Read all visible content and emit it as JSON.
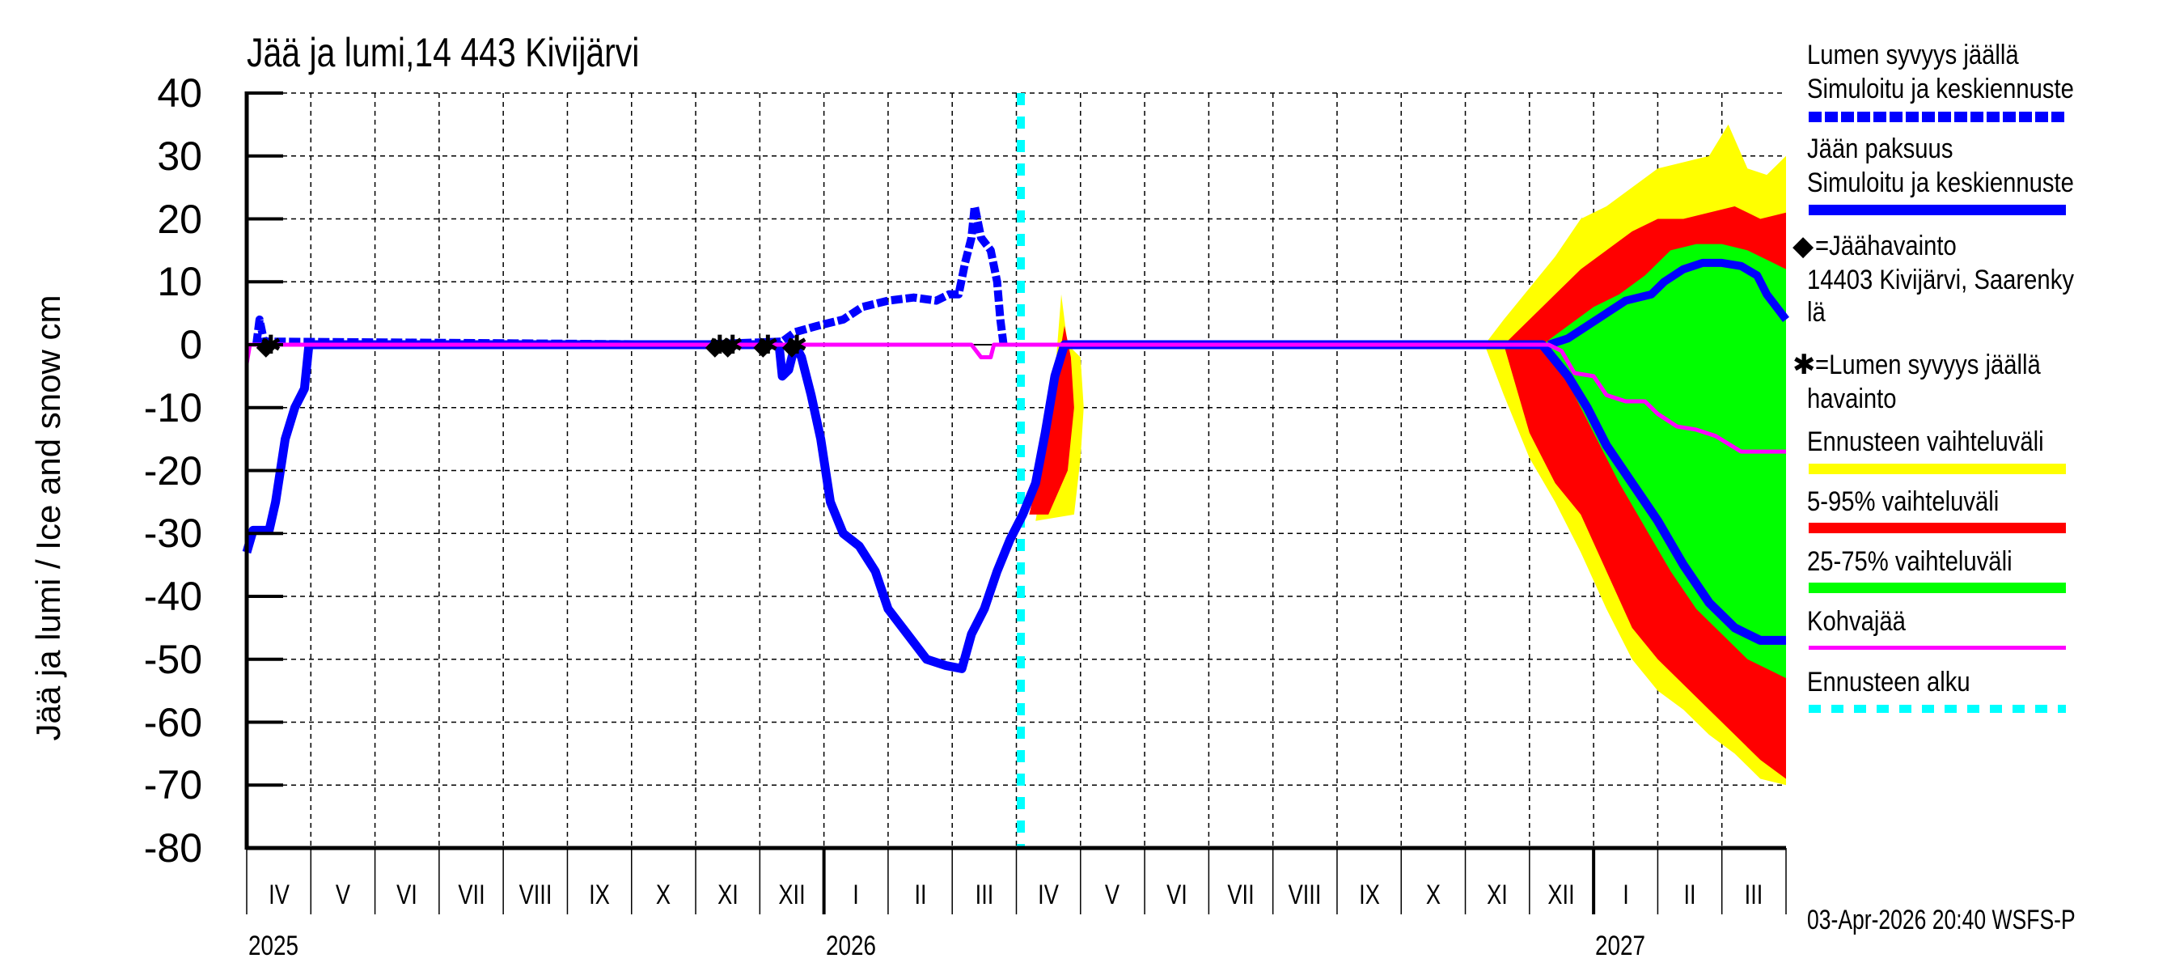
{
  "title": "Jää ja lumi,14 443 Kivijärvi",
  "ylabel": "Jää ja lumi / Ice and snow    cm",
  "timestamp": "03-Apr-2026 20:40 WSFS-P",
  "colors": {
    "snow_line": "#0000ff",
    "ice_line": "#0000ff",
    "forecast_range": "#ffff00",
    "range_5_95": "#ff0000",
    "range_25_75": "#00ff00",
    "slush_ice": "#ff00ff",
    "forecast_start": "#00ffff",
    "observation_marker": "#000000"
  },
  "legend": {
    "snow_title": "Lumen syvyys jäällä",
    "snow_sub": "Simuloitu ja keskiennuste",
    "ice_title": "Jään paksuus",
    "ice_sub": "Simuloitu ja keskiennuste",
    "ice_obs": "=Jäähavainto",
    "ice_obs_station_1": "14403 Kivijärvi, Saarenky",
    "ice_obs_station_2": "lä",
    "snow_obs_1": "=Lumen syvyys jäällä",
    "snow_obs_2": "havainto",
    "forecast_range": "Ennusteen vaihteluväli",
    "range_5_95": "5-95% vaihteluväli",
    "range_25_75": "25-75% vaihteluväli",
    "slush": "Kohvajää",
    "forecast_start": "Ennusteen alku"
  },
  "chart_data": {
    "type": "line",
    "title": "Jää ja lumi,14 443 Kivijärvi",
    "xlabel": "",
    "ylabel": "Jää ja lumi / Ice and snow cm",
    "ylim": [
      -80,
      40
    ],
    "yticks": [
      40,
      30,
      20,
      10,
      0,
      -10,
      -20,
      -30,
      -40,
      -50,
      -60,
      -70,
      -80
    ],
    "x_unit": "months since 2025-04-01",
    "xlim": [
      0,
      24
    ],
    "month_labels": [
      "IV",
      "V",
      "VI",
      "VII",
      "VIII",
      "IX",
      "X",
      "XI",
      "XII",
      "I",
      "II",
      "III",
      "IV",
      "V",
      "VI",
      "VII",
      "VIII",
      "IX",
      "X",
      "XI",
      "XII",
      "I",
      "II",
      "III"
    ],
    "year_labels": [
      {
        "label": "2025",
        "at": 0
      },
      {
        "label": "2026",
        "at": 9
      },
      {
        "label": "2027",
        "at": 21
      }
    ],
    "grid": true,
    "forecast_start": 12.07,
    "series": [
      {
        "name": "Lumen syvyys jäällä (simuloitu)",
        "style": "dashed",
        "points": [
          [
            0.15,
            0
          ],
          [
            0.2,
            4
          ],
          [
            0.27,
            0.5
          ],
          [
            7.0,
            0
          ],
          [
            8.35,
            0.5
          ],
          [
            8.55,
            2
          ],
          [
            8.9,
            3
          ],
          [
            9.3,
            4
          ],
          [
            9.6,
            6
          ],
          [
            10.0,
            7
          ],
          [
            10.4,
            7.5
          ],
          [
            10.75,
            7
          ],
          [
            10.95,
            8
          ],
          [
            11.1,
            8
          ],
          [
            11.2,
            13
          ],
          [
            11.3,
            17
          ],
          [
            11.35,
            22
          ],
          [
            11.45,
            17
          ],
          [
            11.6,
            15
          ],
          [
            11.7,
            10
          ],
          [
            11.75,
            4
          ],
          [
            11.8,
            0
          ]
        ]
      },
      {
        "name": "Jään paksuus (simuloitu)",
        "style": "solid",
        "points": [
          [
            0,
            -33
          ],
          [
            0.1,
            -29.5
          ],
          [
            0.35,
            -29.5
          ],
          [
            0.45,
            -25
          ],
          [
            0.6,
            -15
          ],
          [
            0.75,
            -10
          ],
          [
            0.9,
            -7
          ],
          [
            0.97,
            0
          ],
          [
            8.3,
            0
          ],
          [
            8.35,
            -5
          ],
          [
            8.45,
            -4
          ],
          [
            8.55,
            0
          ],
          [
            8.65,
            -2
          ],
          [
            8.8,
            -8
          ],
          [
            8.95,
            -15
          ],
          [
            9.1,
            -25
          ],
          [
            9.3,
            -30
          ],
          [
            9.55,
            -32
          ],
          [
            9.8,
            -36
          ],
          [
            10.0,
            -42
          ],
          [
            10.3,
            -46
          ],
          [
            10.6,
            -50
          ],
          [
            10.9,
            -51
          ],
          [
            11.15,
            -51.5
          ],
          [
            11.3,
            -46
          ],
          [
            11.5,
            -42
          ],
          [
            11.7,
            -36
          ],
          [
            11.9,
            -31
          ],
          [
            12.1,
            -27
          ],
          [
            12.3,
            -22
          ],
          [
            12.45,
            -14
          ],
          [
            12.6,
            -5
          ],
          [
            12.75,
            0
          ],
          [
            20.2,
            0
          ],
          [
            20.6,
            -5
          ],
          [
            20.9,
            -10
          ],
          [
            21.2,
            -16
          ],
          [
            21.6,
            -22
          ],
          [
            22.0,
            -28
          ],
          [
            22.4,
            -35
          ],
          [
            22.8,
            -41
          ],
          [
            23.2,
            -45
          ],
          [
            23.6,
            -47
          ],
          [
            24.0,
            -47
          ]
        ]
      },
      {
        "name": "Lumen syvyys ennuste (keski)",
        "style": "solid",
        "points": [
          [
            20.3,
            0
          ],
          [
            20.6,
            1
          ],
          [
            20.9,
            3
          ],
          [
            21.2,
            5
          ],
          [
            21.5,
            7
          ],
          [
            21.9,
            8
          ],
          [
            22.1,
            10
          ],
          [
            22.4,
            12
          ],
          [
            22.7,
            13
          ],
          [
            23.0,
            13
          ],
          [
            23.3,
            12.5
          ],
          [
            23.55,
            11
          ],
          [
            23.7,
            8
          ],
          [
            23.85,
            6
          ],
          [
            24.0,
            4
          ]
        ]
      },
      {
        "name": "Kohvajää",
        "style": "solid",
        "points": [
          [
            0,
            -3
          ],
          [
            0.05,
            0
          ],
          [
            11.3,
            0
          ],
          [
            11.45,
            -2
          ],
          [
            11.6,
            -2
          ],
          [
            11.65,
            0
          ],
          [
            20.3,
            0
          ],
          [
            20.5,
            -1
          ],
          [
            20.7,
            -4.5
          ],
          [
            21.0,
            -5
          ],
          [
            21.2,
            -8
          ],
          [
            21.5,
            -9
          ],
          [
            21.8,
            -9
          ],
          [
            22.0,
            -11
          ],
          [
            22.3,
            -13
          ],
          [
            22.6,
            -13.5
          ],
          [
            22.9,
            -14.5
          ],
          [
            23.3,
            -17
          ],
          [
            24.0,
            -17
          ]
        ]
      }
    ],
    "bands": [
      {
        "name": "Ennusteen vaihteluväli",
        "color": "#ffff00",
        "upper": [
          [
            19.3,
            0
          ],
          [
            19.6,
            4
          ],
          [
            20.0,
            9
          ],
          [
            20.4,
            14
          ],
          [
            20.8,
            20
          ],
          [
            21.2,
            22
          ],
          [
            21.6,
            25
          ],
          [
            22.0,
            28
          ],
          [
            22.4,
            29
          ],
          [
            22.8,
            30
          ],
          [
            23.1,
            35
          ],
          [
            23.4,
            28
          ],
          [
            23.7,
            27
          ],
          [
            24.0,
            30
          ]
        ],
        "lower": [
          [
            19.3,
            0
          ],
          [
            19.6,
            -8
          ],
          [
            20.0,
            -18
          ],
          [
            20.4,
            -25
          ],
          [
            20.8,
            -33
          ],
          [
            21.2,
            -42
          ],
          [
            21.6,
            -50
          ],
          [
            22.0,
            -55
          ],
          [
            22.4,
            -58
          ],
          [
            22.8,
            -62
          ],
          [
            23.2,
            -65
          ],
          [
            23.6,
            -69
          ],
          [
            24.0,
            -70
          ]
        ]
      },
      {
        "name": "5-95% vaihteluväli",
        "color": "#ff0000",
        "upper": [
          [
            19.6,
            0
          ],
          [
            20.0,
            4
          ],
          [
            20.4,
            8
          ],
          [
            20.8,
            12
          ],
          [
            21.2,
            15
          ],
          [
            21.6,
            18
          ],
          [
            22.0,
            20
          ],
          [
            22.4,
            20
          ],
          [
            22.8,
            21
          ],
          [
            23.2,
            22
          ],
          [
            23.6,
            20
          ],
          [
            24.0,
            21
          ]
        ],
        "lower": [
          [
            19.6,
            0
          ],
          [
            20.0,
            -14
          ],
          [
            20.4,
            -22
          ],
          [
            20.8,
            -27
          ],
          [
            21.2,
            -36
          ],
          [
            21.6,
            -45
          ],
          [
            22.0,
            -50
          ],
          [
            22.4,
            -54
          ],
          [
            22.8,
            -58
          ],
          [
            23.2,
            -62
          ],
          [
            23.6,
            -66
          ],
          [
            24.0,
            -69
          ]
        ]
      },
      {
        "name": "25-75% vaihteluväli",
        "color": "#00ff00",
        "upper": [
          [
            20.2,
            0
          ],
          [
            20.6,
            3
          ],
          [
            21.0,
            6
          ],
          [
            21.4,
            8
          ],
          [
            21.8,
            11
          ],
          [
            22.2,
            15
          ],
          [
            22.6,
            16
          ],
          [
            23.0,
            16
          ],
          [
            23.4,
            15
          ],
          [
            23.8,
            13
          ],
          [
            24.0,
            12
          ]
        ],
        "lower": [
          [
            20.2,
            0
          ],
          [
            20.6,
            -6
          ],
          [
            21.0,
            -14
          ],
          [
            21.4,
            -22
          ],
          [
            21.8,
            -29
          ],
          [
            22.2,
            -36
          ],
          [
            22.6,
            -42
          ],
          [
            23.0,
            -46
          ],
          [
            23.4,
            -50
          ],
          [
            23.8,
            -52
          ],
          [
            24.0,
            -53
          ]
        ]
      },
      {
        "name": "Ennuste 2026 kevät (vaihteluväli)",
        "color": "#ffff00",
        "upper": [
          [
            12.3,
            -28
          ],
          [
            12.5,
            -15
          ],
          [
            12.6,
            -5
          ],
          [
            12.7,
            8
          ],
          [
            12.8,
            0
          ],
          [
            13.0,
            -2
          ],
          [
            13.05,
            -10
          ],
          [
            13.0,
            -18
          ],
          [
            12.9,
            -27
          ]
        ],
        "lower": []
      }
    ],
    "observations": {
      "snow_on_ice": [
        [
          0.3,
          0
        ],
        [
          7.3,
          0
        ],
        [
          7.5,
          0
        ],
        [
          8.05,
          0
        ],
        [
          8.5,
          0
        ]
      ],
      "ice_thickness": [
        [
          0.3,
          -0.5
        ],
        [
          7.3,
          -0.5
        ],
        [
          7.5,
          -0.5
        ],
        [
          8.05,
          -0.5
        ],
        [
          8.5,
          -0.5
        ]
      ]
    }
  }
}
